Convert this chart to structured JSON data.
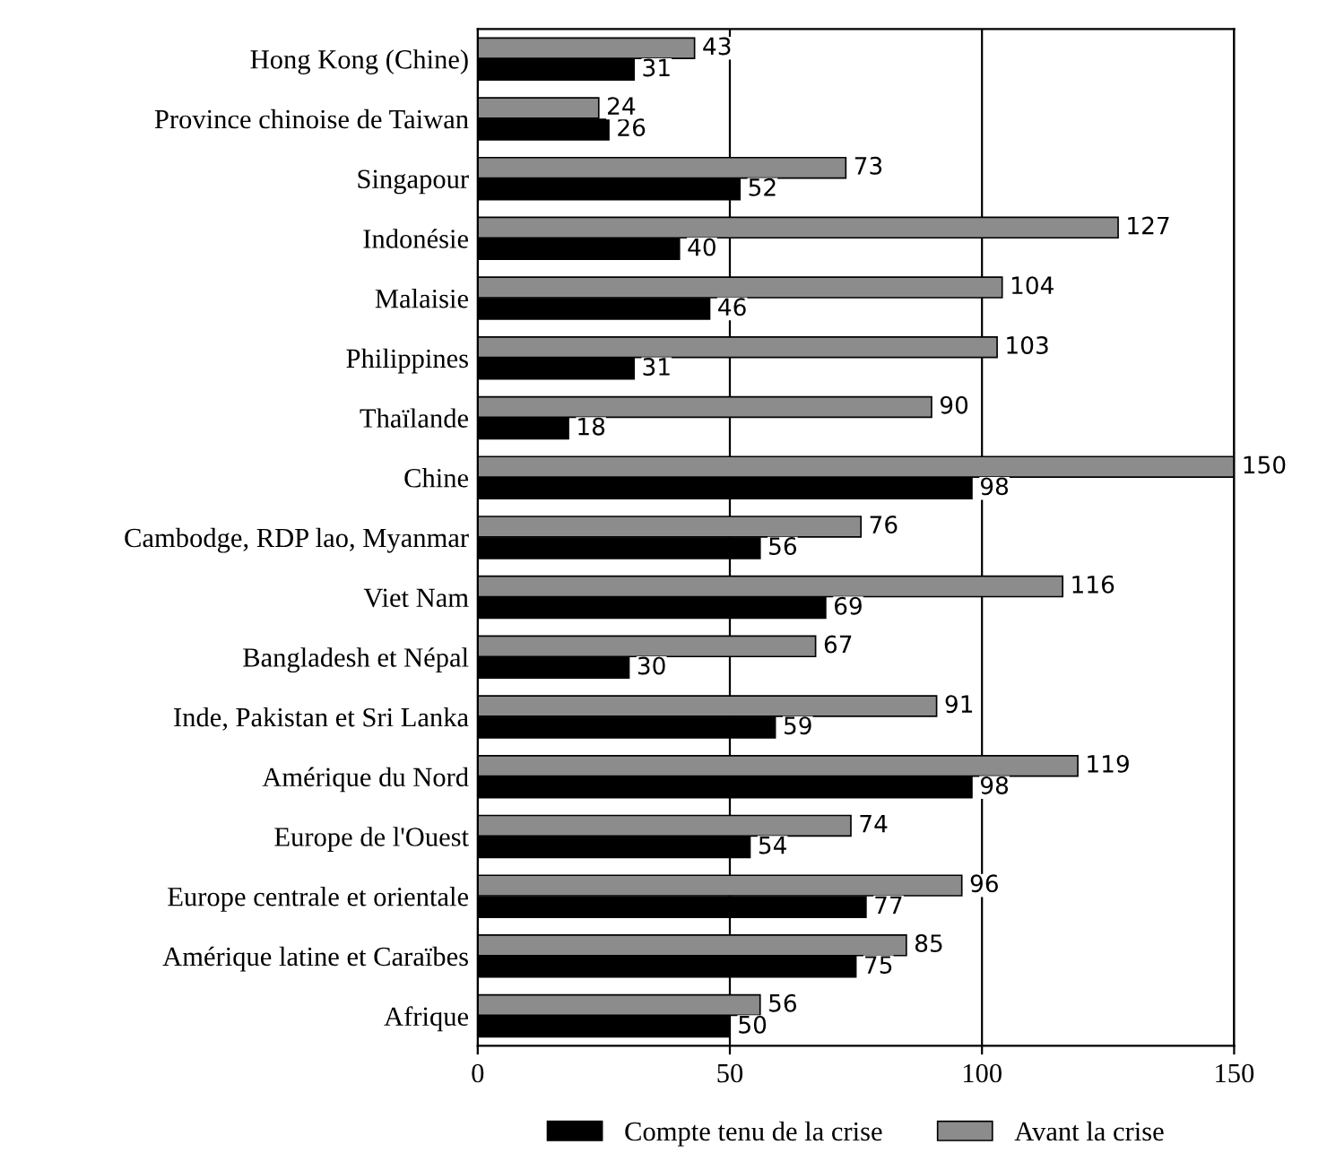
{
  "chart_data": {
    "type": "bar",
    "orientation": "horizontal",
    "categories": [
      "Hong Kong (Chine)",
      "Province chinoise de Taiwan",
      "Singapour",
      "Indonésie",
      "Malaisie",
      "Philippines",
      "Thaïlande",
      "Chine",
      "Cambodge, RDP lao, Myanmar",
      "Viet Nam",
      "Bangladesh et Népal",
      "Inde, Pakistan et Sri Lanka",
      "Amérique du Nord",
      "Europe de l'Ouest",
      "Europe centrale et orientale",
      "Amérique latine et Caraïbes",
      "Afrique"
    ],
    "series": [
      {
        "name": "Compte tenu de la crise",
        "color": "#000000",
        "values": [
          31,
          26,
          52,
          40,
          46,
          31,
          18,
          98,
          56,
          69,
          30,
          59,
          98,
          54,
          77,
          75,
          50
        ]
      },
      {
        "name": "Avant la crise",
        "color": "#8c8c8c",
        "values": [
          43,
          24,
          73,
          127,
          104,
          103,
          90,
          150,
          76,
          116,
          67,
          91,
          119,
          74,
          96,
          85,
          56
        ]
      }
    ],
    "xlim": [
      0,
      150
    ],
    "xticks": [
      0,
      50,
      100,
      150
    ],
    "grid": "x",
    "legend": "bottom",
    "data_labels": true
  }
}
